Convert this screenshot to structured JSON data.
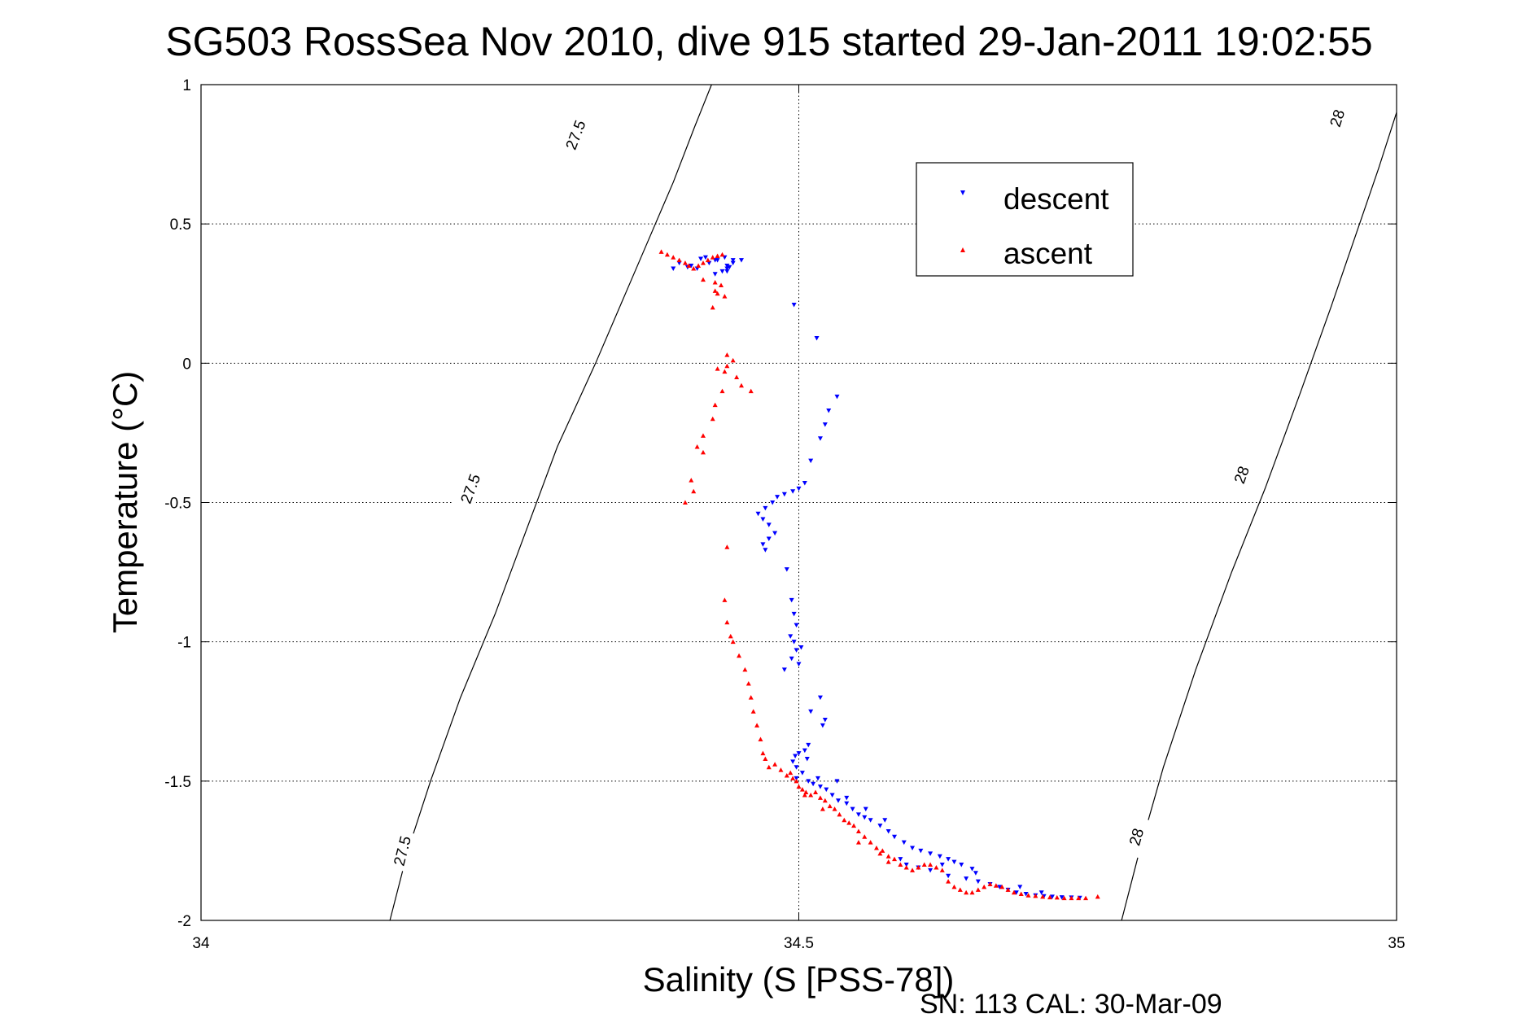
{
  "chart_data": {
    "type": "scatter",
    "title": "SG503 RossSea Nov 2010, dive 915 started 29-Jan-2011 19:02:55",
    "xlabel": "Salinity (S [PSS-78])",
    "ylabel": "Temperature (°C)",
    "xlim": [
      34,
      35
    ],
    "ylim": [
      -2,
      1
    ],
    "xticks": [
      34,
      34.5,
      35
    ],
    "xtick_labels": [
      "34",
      "34.5",
      "35"
    ],
    "yticks": [
      1,
      0.5,
      0,
      -0.5,
      -1,
      -1.5,
      -2
    ],
    "ytick_labels": [
      "1",
      "0.5",
      "0",
      "-0.5",
      "-1",
      "-1.5",
      "-2"
    ],
    "grid": true,
    "legend_position": "top-right",
    "footer": "SN: 113  CAL: 30-Mar-09",
    "contours": [
      {
        "label": "27.5",
        "points": [
          [
            34.158,
            -2.0
          ],
          [
            34.173,
            -1.75
          ],
          [
            34.192,
            -1.5
          ],
          [
            34.217,
            -1.2
          ],
          [
            34.246,
            -0.9
          ],
          [
            34.272,
            -0.6
          ],
          [
            34.298,
            -0.3
          ],
          [
            34.33,
            0.0
          ],
          [
            34.355,
            0.25
          ],
          [
            34.375,
            0.45
          ],
          [
            34.395,
            0.65
          ],
          [
            34.413,
            0.85
          ],
          [
            34.427,
            1.0
          ]
        ],
        "labels_at": [
          [
            34.168,
            -1.75
          ],
          [
            34.225,
            -0.45
          ],
          [
            34.313,
            0.82
          ]
        ]
      },
      {
        "label": "28",
        "points": [
          [
            34.77,
            -2.0
          ],
          [
            34.785,
            -1.75
          ],
          [
            34.805,
            -1.45
          ],
          [
            34.832,
            -1.1
          ],
          [
            34.862,
            -0.75
          ],
          [
            34.89,
            -0.45
          ],
          [
            34.92,
            -0.1
          ],
          [
            34.945,
            0.2
          ],
          [
            34.965,
            0.45
          ],
          [
            34.985,
            0.7
          ],
          [
            35.0,
            0.9
          ]
        ],
        "labels_at": [
          [
            34.782,
            -1.7
          ],
          [
            34.87,
            -0.4
          ],
          [
            34.95,
            0.88
          ]
        ]
      }
    ],
    "series": [
      {
        "name": "descent",
        "color": "#0000ff",
        "marker": "triangle-down",
        "points": [
          [
            34.422,
            0.38
          ],
          [
            34.43,
            0.37
          ],
          [
            34.438,
            0.38
          ],
          [
            34.445,
            0.36
          ],
          [
            34.44,
            0.34
          ],
          [
            34.432,
            0.37
          ],
          [
            34.425,
            0.36
          ],
          [
            34.41,
            0.35
          ],
          [
            34.415,
            0.34
          ],
          [
            34.44,
            0.33
          ],
          [
            34.445,
            0.37
          ],
          [
            34.4,
            0.36
          ],
          [
            34.395,
            0.34
          ],
          [
            34.43,
            0.32
          ],
          [
            34.436,
            0.33
          ],
          [
            34.44,
            0.35
          ],
          [
            34.442,
            0.345
          ],
          [
            34.418,
            0.375
          ],
          [
            34.452,
            0.37
          ],
          [
            34.407,
            0.345
          ],
          [
            34.496,
            0.21
          ],
          [
            34.515,
            0.09
          ],
          [
            34.532,
            -0.12
          ],
          [
            34.525,
            -0.17
          ],
          [
            34.522,
            -0.22
          ],
          [
            34.518,
            -0.27
          ],
          [
            34.51,
            -0.35
          ],
          [
            34.505,
            -0.43
          ],
          [
            34.5,
            -0.45
          ],
          [
            34.495,
            -0.46
          ],
          [
            34.488,
            -0.47
          ],
          [
            34.482,
            -0.48
          ],
          [
            34.478,
            -0.5
          ],
          [
            34.472,
            -0.52
          ],
          [
            34.466,
            -0.54
          ],
          [
            34.47,
            -0.56
          ],
          [
            34.475,
            -0.58
          ],
          [
            34.48,
            -0.61
          ],
          [
            34.475,
            -0.63
          ],
          [
            34.47,
            -0.65
          ],
          [
            34.472,
            -0.67
          ],
          [
            34.49,
            -0.74
          ],
          [
            34.494,
            -0.85
          ],
          [
            34.496,
            -0.9
          ],
          [
            34.498,
            -0.94
          ],
          [
            34.493,
            -0.98
          ],
          [
            34.496,
            -1.0
          ],
          [
            34.498,
            -1.03
          ],
          [
            34.494,
            -1.06
          ],
          [
            34.488,
            -1.1
          ],
          [
            34.5,
            -1.08
          ],
          [
            34.502,
            -1.02
          ],
          [
            34.518,
            -1.2
          ],
          [
            34.51,
            -1.25
          ],
          [
            34.52,
            -1.3
          ],
          [
            34.522,
            -1.28
          ],
          [
            34.508,
            -1.37
          ],
          [
            34.505,
            -1.39
          ],
          [
            34.5,
            -1.4
          ],
          [
            34.497,
            -1.41
          ],
          [
            34.495,
            -1.43
          ],
          [
            34.498,
            -1.45
          ],
          [
            34.503,
            -1.47
          ],
          [
            34.498,
            -1.49
          ],
          [
            34.508,
            -1.5
          ],
          [
            34.512,
            -1.51
          ],
          [
            34.518,
            -1.52
          ],
          [
            34.523,
            -1.53
          ],
          [
            34.528,
            -1.55
          ],
          [
            34.533,
            -1.57
          ],
          [
            34.54,
            -1.58
          ],
          [
            34.545,
            -1.6
          ],
          [
            34.55,
            -1.62
          ],
          [
            34.555,
            -1.63
          ],
          [
            34.56,
            -1.64
          ],
          [
            34.568,
            -1.66
          ],
          [
            34.575,
            -1.68
          ],
          [
            34.58,
            -1.7
          ],
          [
            34.588,
            -1.72
          ],
          [
            34.595,
            -1.74
          ],
          [
            34.602,
            -1.75
          ],
          [
            34.61,
            -1.76
          ],
          [
            34.618,
            -1.77
          ],
          [
            34.625,
            -1.78
          ],
          [
            34.63,
            -1.79
          ],
          [
            34.62,
            -1.8
          ],
          [
            34.6,
            -1.81
          ],
          [
            34.585,
            -1.78
          ],
          [
            34.59,
            -1.8
          ],
          [
            34.61,
            -1.82
          ],
          [
            34.625,
            -1.84
          ],
          [
            34.64,
            -1.85
          ],
          [
            34.65,
            -1.86
          ],
          [
            34.66,
            -1.87
          ],
          [
            34.668,
            -1.88
          ],
          [
            34.675,
            -1.89
          ],
          [
            34.682,
            -1.9
          ],
          [
            34.69,
            -1.905
          ],
          [
            34.698,
            -1.91
          ],
          [
            34.705,
            -1.913
          ],
          [
            34.712,
            -1.915
          ],
          [
            34.72,
            -1.917
          ],
          [
            34.728,
            -1.918
          ],
          [
            34.735,
            -1.919
          ],
          [
            34.703,
            -1.9
          ],
          [
            34.685,
            -1.88
          ],
          [
            34.648,
            -1.83
          ],
          [
            34.636,
            -1.8
          ],
          [
            34.645,
            -1.815
          ],
          [
            34.572,
            -1.64
          ],
          [
            34.556,
            -1.6
          ],
          [
            34.54,
            -1.56
          ],
          [
            34.532,
            -1.5
          ],
          [
            34.516,
            -1.49
          ],
          [
            34.507,
            -1.42
          ]
        ]
      },
      {
        "name": "ascent",
        "color": "#ff0000",
        "marker": "triangle-up",
        "points": [
          [
            34.385,
            0.4
          ],
          [
            34.39,
            0.39
          ],
          [
            34.395,
            0.38
          ],
          [
            34.4,
            0.37
          ],
          [
            34.405,
            0.36
          ],
          [
            34.408,
            0.35
          ],
          [
            34.412,
            0.34
          ],
          [
            34.416,
            0.35
          ],
          [
            34.42,
            0.36
          ],
          [
            34.424,
            0.37
          ],
          [
            34.428,
            0.38
          ],
          [
            34.432,
            0.385
          ],
          [
            34.436,
            0.39
          ],
          [
            34.42,
            0.3
          ],
          [
            34.43,
            0.29
          ],
          [
            34.435,
            0.28
          ],
          [
            34.43,
            0.26
          ],
          [
            34.432,
            0.25
          ],
          [
            34.438,
            0.24
          ],
          [
            34.428,
            0.2
          ],
          [
            34.44,
            0.03
          ],
          [
            34.445,
            0.01
          ],
          [
            34.44,
            -0.01
          ],
          [
            34.438,
            -0.03
          ],
          [
            34.432,
            -0.02
          ],
          [
            34.448,
            -0.05
          ],
          [
            34.452,
            -0.08
          ],
          [
            34.46,
            -0.1
          ],
          [
            34.436,
            -0.1
          ],
          [
            34.43,
            -0.15
          ],
          [
            34.428,
            -0.2
          ],
          [
            34.42,
            -0.26
          ],
          [
            34.415,
            -0.3
          ],
          [
            34.42,
            -0.32
          ],
          [
            34.41,
            -0.42
          ],
          [
            34.412,
            -0.46
          ],
          [
            34.405,
            -0.5
          ],
          [
            34.44,
            -0.66
          ],
          [
            34.438,
            -0.85
          ],
          [
            34.44,
            -0.93
          ],
          [
            34.443,
            -0.98
          ],
          [
            34.445,
            -1.0
          ],
          [
            34.45,
            -1.05
          ],
          [
            34.455,
            -1.1
          ],
          [
            34.458,
            -1.15
          ],
          [
            34.46,
            -1.2
          ],
          [
            34.462,
            -1.25
          ],
          [
            34.465,
            -1.3
          ],
          [
            34.468,
            -1.35
          ],
          [
            34.47,
            -1.4
          ],
          [
            34.472,
            -1.42
          ],
          [
            34.475,
            -1.45
          ],
          [
            34.48,
            -1.44
          ],
          [
            34.485,
            -1.46
          ],
          [
            34.49,
            -1.48
          ],
          [
            34.493,
            -1.47
          ],
          [
            34.495,
            -1.49
          ],
          [
            34.498,
            -1.5
          ],
          [
            34.5,
            -1.52
          ],
          [
            34.503,
            -1.53
          ],
          [
            34.506,
            -1.54
          ],
          [
            34.51,
            -1.55
          ],
          [
            34.514,
            -1.54
          ],
          [
            34.518,
            -1.56
          ],
          [
            34.522,
            -1.57
          ],
          [
            34.526,
            -1.59
          ],
          [
            34.53,
            -1.6
          ],
          [
            34.534,
            -1.62
          ],
          [
            34.538,
            -1.64
          ],
          [
            34.542,
            -1.65
          ],
          [
            34.546,
            -1.66
          ],
          [
            34.55,
            -1.68
          ],
          [
            34.555,
            -1.7
          ],
          [
            34.56,
            -1.72
          ],
          [
            34.565,
            -1.74
          ],
          [
            34.57,
            -1.75
          ],
          [
            34.575,
            -1.77
          ],
          [
            34.58,
            -1.78
          ],
          [
            34.585,
            -1.8
          ],
          [
            34.59,
            -1.81
          ],
          [
            34.595,
            -1.82
          ],
          [
            34.6,
            -1.81
          ],
          [
            34.605,
            -1.8
          ],
          [
            34.61,
            -1.8
          ],
          [
            34.615,
            -1.81
          ],
          [
            34.62,
            -1.82
          ],
          [
            34.625,
            -1.86
          ],
          [
            34.63,
            -1.88
          ],
          [
            34.635,
            -1.89
          ],
          [
            34.64,
            -1.9
          ],
          [
            34.645,
            -1.9
          ],
          [
            34.65,
            -1.89
          ],
          [
            34.655,
            -1.88
          ],
          [
            34.66,
            -1.87
          ],
          [
            34.665,
            -1.875
          ],
          [
            34.67,
            -1.88
          ],
          [
            34.675,
            -1.89
          ],
          [
            34.68,
            -1.9
          ],
          [
            34.686,
            -1.905
          ],
          [
            34.692,
            -1.91
          ],
          [
            34.698,
            -1.912
          ],
          [
            34.704,
            -1.915
          ],
          [
            34.71,
            -1.917
          ],
          [
            34.716,
            -1.918
          ],
          [
            34.722,
            -1.92
          ],
          [
            34.728,
            -1.92
          ],
          [
            34.734,
            -1.92
          ],
          [
            34.74,
            -1.92
          ],
          [
            34.75,
            -1.915
          ],
          [
            34.575,
            -1.79
          ],
          [
            34.568,
            -1.76
          ],
          [
            34.55,
            -1.72
          ],
          [
            34.52,
            -1.6
          ],
          [
            34.505,
            -1.55
          ]
        ]
      }
    ]
  }
}
